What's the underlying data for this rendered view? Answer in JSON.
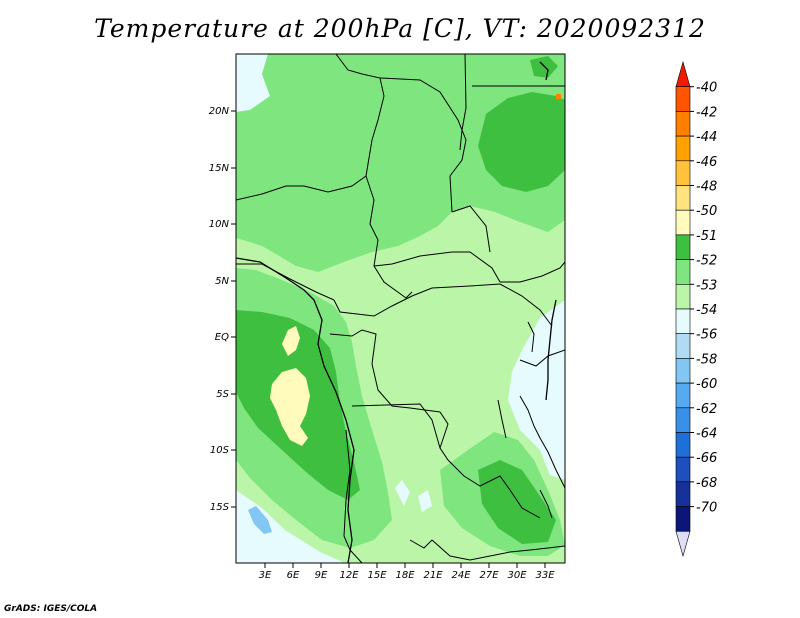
{
  "title": "Temperature at 200hPa [C], VT: 2020092312",
  "footer": "GrADS: IGES/COLA",
  "map": {
    "lat_labels": [
      "20N",
      "15N",
      "10N",
      "5N",
      "EQ",
      "5S",
      "10S",
      "15S"
    ],
    "lon_labels": [
      "3E",
      "6E",
      "9E",
      "12E",
      "15E",
      "18E",
      "21E",
      "24E",
      "27E",
      "30E",
      "33E"
    ]
  },
  "colorbar": {
    "labels": [
      "-40",
      "-42",
      "-44",
      "-46",
      "-48",
      "-50",
      "-51",
      "-52",
      "-53",
      "-54",
      "-56",
      "-58",
      "-60",
      "-62",
      "-64",
      "-66",
      "-68",
      "-70"
    ],
    "colors": [
      "#f21a00",
      "#ff5500",
      "#ff7f00",
      "#ffa100",
      "#ffc23a",
      "#ffe37f",
      "#fffbbd",
      "#3fbf3f",
      "#7fe57f",
      "#bbf6a8",
      "#e6fbfd",
      "#afdcf4",
      "#82c6f3",
      "#56aaf0",
      "#3a8fe8",
      "#1f6fd8",
      "#1e4fbd",
      "#16329a",
      "#0c1676",
      "#e0def7"
    ]
  },
  "colors": {
    "land_base": "#bbf6a8",
    "mid_green": "#7fe57f",
    "dark_green": "#3fbf3f",
    "cyan": "#e6fbfd",
    "yellow": "#fffbbd",
    "blue": "#82c6f3"
  }
}
